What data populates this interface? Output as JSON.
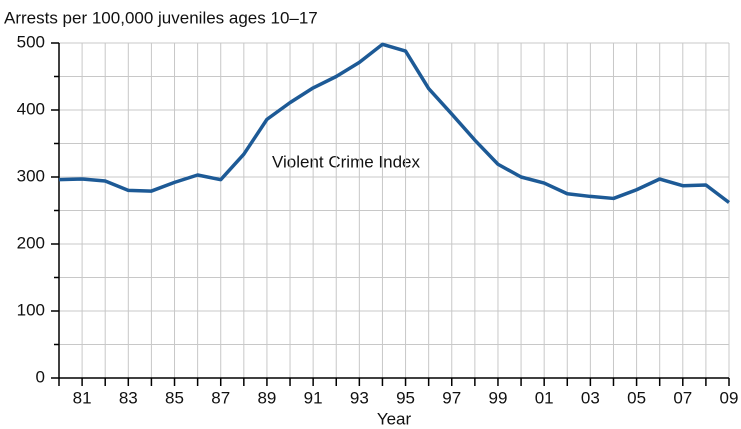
{
  "chart_data": {
    "type": "line",
    "y_axis_title": "Arrests per 100,000 juveniles ages 10–17",
    "x_axis_title": "Year",
    "annotation": "Violent Crime Index",
    "categories": [
      null,
      "81",
      null,
      "83",
      null,
      "85",
      null,
      "87",
      null,
      "89",
      null,
      "91",
      null,
      "93",
      null,
      "95",
      null,
      "97",
      null,
      "99",
      null,
      "01",
      null,
      "03",
      null,
      "05",
      null,
      "07",
      null,
      "09"
    ],
    "series": [
      {
        "name": "Violent Crime Index",
        "color": "#1d5a96",
        "values": [
          296,
          297,
          294,
          280,
          279,
          292,
          303,
          296,
          334,
          386,
          411,
          433,
          450,
          471,
          498,
          488,
          432,
          394,
          355,
          319,
          300,
          291,
          275,
          271,
          268,
          281,
          297,
          287,
          288,
          262
        ]
      }
    ],
    "ylim": [
      0,
      500
    ],
    "yticks": [
      0,
      100,
      200,
      300,
      400,
      500
    ],
    "minor_yticks": [
      50,
      150,
      250,
      350,
      450
    ],
    "grid": true
  }
}
